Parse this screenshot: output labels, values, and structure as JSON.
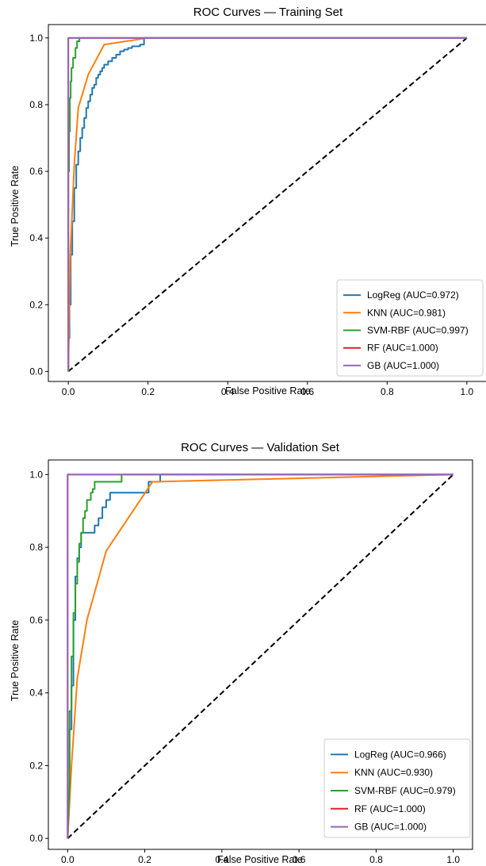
{
  "chart_data": [
    {
      "type": "line",
      "title": "ROC Curves — Training Set",
      "xlabel": "False Positive Rate",
      "ylabel": "True Positive Rate",
      "xlim": [
        -0.05,
        1.05
      ],
      "ylim": [
        -0.03,
        1.04
      ],
      "xticks": [
        "0.0",
        "0.2",
        "0.4",
        "0.6",
        "0.8",
        "1.0"
      ],
      "yticks": [
        "0.0",
        "0.2",
        "0.4",
        "0.6",
        "0.8",
        "1.0"
      ],
      "grid": false,
      "legend_position": "lower-right",
      "chance_line": {
        "x": [
          0,
          1
        ],
        "y": [
          0,
          1
        ],
        "color": "#000000",
        "style": "dashed"
      },
      "series": [
        {
          "name": "LogReg (AUC=0.972)",
          "color": "#1f77b4",
          "x": [
            0,
            0,
            0.003,
            0.003,
            0.006,
            0.006,
            0.01,
            0.01,
            0.015,
            0.015,
            0.02,
            0.02,
            0.025,
            0.025,
            0.03,
            0.03,
            0.035,
            0.035,
            0.04,
            0.04,
            0.045,
            0.045,
            0.05,
            0.05,
            0.055,
            0.055,
            0.06,
            0.06,
            0.065,
            0.065,
            0.07,
            0.07,
            0.075,
            0.075,
            0.08,
            0.08,
            0.085,
            0.085,
            0.09,
            0.09,
            0.1,
            0.1,
            0.11,
            0.11,
            0.12,
            0.12,
            0.13,
            0.13,
            0.14,
            0.14,
            0.15,
            0.15,
            0.16,
            0.16,
            0.18,
            0.18,
            0.19,
            0.19,
            1.0
          ],
          "y": [
            0,
            0.1,
            0.1,
            0.2,
            0.2,
            0.35,
            0.35,
            0.45,
            0.45,
            0.55,
            0.55,
            0.62,
            0.62,
            0.66,
            0.66,
            0.7,
            0.7,
            0.73,
            0.73,
            0.76,
            0.76,
            0.79,
            0.79,
            0.81,
            0.81,
            0.83,
            0.83,
            0.85,
            0.85,
            0.86,
            0.86,
            0.88,
            0.88,
            0.89,
            0.89,
            0.9,
            0.9,
            0.91,
            0.91,
            0.92,
            0.92,
            0.93,
            0.93,
            0.94,
            0.94,
            0.95,
            0.95,
            0.96,
            0.96,
            0.965,
            0.965,
            0.97,
            0.97,
            0.975,
            0.975,
            0.98,
            0.98,
            1.0,
            1.0
          ]
        },
        {
          "name": "KNN (AUC=0.981)",
          "color": "#ff7f0e",
          "x": [
            0,
            0.005,
            0.015,
            0.025,
            0.05,
            0.09,
            0.2,
            1.0
          ],
          "y": [
            0,
            0.35,
            0.62,
            0.79,
            0.89,
            0.98,
            1.0,
            1.0
          ]
        },
        {
          "name": "SVM-RBF (AUC=0.997)",
          "color": "#2ca02c",
          "x": [
            0,
            0,
            0.002,
            0.002,
            0.004,
            0.004,
            0.006,
            0.006,
            0.008,
            0.008,
            0.012,
            0.012,
            0.018,
            0.018,
            0.022,
            0.022,
            0.028,
            0.028,
            1.0
          ],
          "y": [
            0,
            0.6,
            0.6,
            0.72,
            0.72,
            0.82,
            0.82,
            0.87,
            0.87,
            0.91,
            0.91,
            0.94,
            0.94,
            0.97,
            0.97,
            0.99,
            0.99,
            1.0,
            1.0
          ]
        },
        {
          "name": "RF (AUC=1.000)",
          "color": "#d62728",
          "x": [
            0,
            0,
            1.0
          ],
          "y": [
            0,
            1.0,
            1.0
          ]
        },
        {
          "name": "GB (AUC=1.000)",
          "color": "#9467bd",
          "x": [
            0,
            0,
            1.0
          ],
          "y": [
            0,
            1.0,
            1.0
          ]
        }
      ]
    },
    {
      "type": "line",
      "title": "ROC Curves — Validation Set",
      "xlabel": "False Positive Rate",
      "ylabel": "True Positive Rate",
      "xlim": [
        -0.05,
        1.05
      ],
      "ylim": [
        -0.03,
        1.04
      ],
      "xticks": [
        "0.0",
        "0.2",
        "0.4",
        "0.6",
        "0.8",
        "1.0"
      ],
      "yticks": [
        "0.0",
        "0.2",
        "0.4",
        "0.6",
        "0.8",
        "1.0"
      ],
      "grid": false,
      "legend_position": "lower-right",
      "chance_line": {
        "x": [
          0,
          1
        ],
        "y": [
          0,
          1
        ],
        "color": "#000000",
        "style": "dashed"
      },
      "series": [
        {
          "name": "LogReg (AUC=0.966)",
          "color": "#1f77b4",
          "x": [
            0,
            0.005,
            0.005,
            0.01,
            0.01,
            0.015,
            0.015,
            0.02,
            0.02,
            0.025,
            0.025,
            0.03,
            0.03,
            0.035,
            0.035,
            0.04,
            0.04,
            0.05,
            0.05,
            0.07,
            0.07,
            0.08,
            0.08,
            0.09,
            0.09,
            0.1,
            0.1,
            0.11,
            0.11,
            0.13,
            0.13,
            0.21,
            0.21,
            0.24,
            0.24,
            1.0
          ],
          "y": [
            0,
            0.12,
            0.3,
            0.3,
            0.42,
            0.42,
            0.6,
            0.6,
            0.72,
            0.72,
            0.77,
            0.77,
            0.8,
            0.8,
            0.84,
            0.84,
            0.84,
            0.84,
            0.84,
            0.84,
            0.86,
            0.86,
            0.88,
            0.88,
            0.91,
            0.91,
            0.93,
            0.93,
            0.95,
            0.95,
            0.95,
            0.95,
            0.98,
            0.98,
            1.0,
            1.0
          ]
        },
        {
          "name": "KNN (AUC=0.930)",
          "color": "#ff7f0e",
          "x": [
            0,
            0.01,
            0.025,
            0.05,
            0.1,
            0.22,
            1.0
          ],
          "y": [
            0,
            0.2,
            0.44,
            0.6,
            0.79,
            0.98,
            1.0
          ]
        },
        {
          "name": "SVM-RBF (AUC=0.979)",
          "color": "#2ca02c",
          "x": [
            0,
            0.005,
            0.005,
            0.01,
            0.01,
            0.015,
            0.015,
            0.02,
            0.02,
            0.025,
            0.025,
            0.03,
            0.03,
            0.035,
            0.035,
            0.04,
            0.04,
            0.045,
            0.045,
            0.05,
            0.05,
            0.055,
            0.055,
            0.06,
            0.06,
            0.065,
            0.065,
            0.07,
            0.07,
            0.1,
            0.1,
            0.14,
            0.14,
            1.0
          ],
          "y": [
            0,
            0.15,
            0.35,
            0.35,
            0.5,
            0.5,
            0.62,
            0.62,
            0.7,
            0.7,
            0.76,
            0.76,
            0.81,
            0.81,
            0.84,
            0.84,
            0.88,
            0.88,
            0.9,
            0.9,
            0.93,
            0.93,
            0.93,
            0.93,
            0.95,
            0.95,
            0.96,
            0.96,
            0.98,
            0.98,
            0.98,
            0.98,
            1.0,
            1.0
          ]
        },
        {
          "name": "RF (AUC=1.000)",
          "color": "#d62728",
          "x": [
            0,
            0,
            1.0
          ],
          "y": [
            0,
            1.0,
            1.0
          ]
        },
        {
          "name": "GB (AUC=1.000)",
          "color": "#9467bd",
          "x": [
            0,
            0,
            1.0
          ],
          "y": [
            0,
            1.0,
            1.0
          ]
        }
      ]
    }
  ]
}
